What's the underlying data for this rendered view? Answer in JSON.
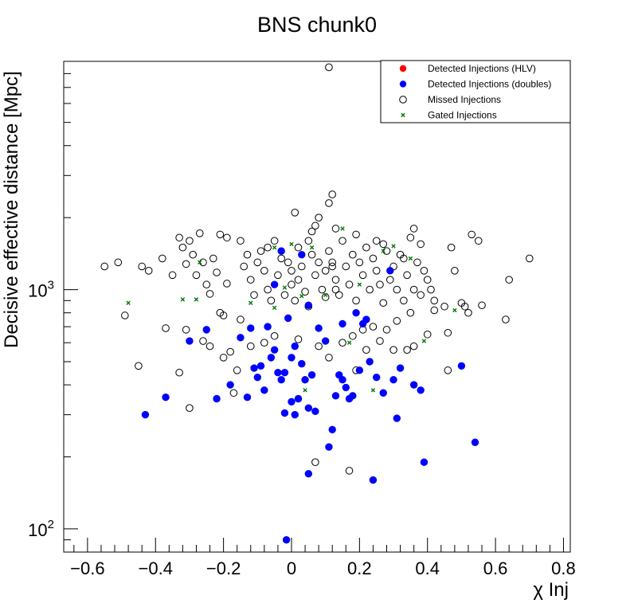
{
  "chart_data": {
    "type": "scatter",
    "title": "BNS chunk0",
    "xlabel": "χ Inj",
    "ylabel": "Decisive effective distance [Mpc]",
    "xlim": [
      -0.67,
      0.82
    ],
    "ylim": [
      80,
      9000
    ],
    "yscale": "log",
    "x_ticks": [
      -0.6,
      -0.4,
      -0.2,
      0,
      0.2,
      0.4,
      0.6,
      0.8
    ],
    "x_tick_labels": [
      "−0.6",
      "−0.4",
      "−0.2",
      "0",
      "0.2",
      "0.4",
      "0.6",
      "0.8"
    ],
    "y_tick_labels": [
      {
        "base": "10",
        "exp": "2",
        "value": 100
      },
      {
        "base": "10",
        "exp": "3",
        "value": 1000
      }
    ],
    "legend_position": "top-right",
    "series": [
      {
        "name": "Detected Injections (HLV)",
        "marker": "filled-circle",
        "color": "#ff0000",
        "points": []
      },
      {
        "name": "Detected Injections (doubles)",
        "marker": "filled-circle",
        "color": "#0000ff",
        "points": [
          [
            -0.43,
            300
          ],
          [
            -0.37,
            355
          ],
          [
            -0.3,
            610
          ],
          [
            -0.22,
            350
          ],
          [
            -0.18,
            400
          ],
          [
            -0.13,
            355
          ],
          [
            -0.15,
            630
          ],
          [
            -0.12,
            690
          ],
          [
            -0.11,
            470
          ],
          [
            -0.1,
            430
          ],
          [
            -0.09,
            480
          ],
          [
            -0.08,
            380
          ],
          [
            -0.07,
            700
          ],
          [
            -0.06,
            520
          ],
          [
            -0.05,
            560
          ],
          [
            -0.04,
            450
          ],
          [
            -0.03,
            420
          ],
          [
            -0.02,
            305
          ],
          [
            -0.015,
            90
          ],
          [
            -0.02,
            450
          ],
          [
            -0.01,
            760
          ],
          [
            0.0,
            520
          ],
          [
            0.01,
            580
          ],
          [
            0.0,
            340
          ],
          [
            0.01,
            300
          ],
          [
            0.02,
            350
          ],
          [
            0.03,
            490
          ],
          [
            0.04,
            420
          ],
          [
            0.05,
            320
          ],
          [
            0.05,
            170
          ],
          [
            0.06,
            440
          ],
          [
            0.07,
            310
          ],
          [
            0.08,
            690
          ],
          [
            0.1,
            610
          ],
          [
            0.11,
            220
          ],
          [
            0.12,
            260
          ],
          [
            0.13,
            360
          ],
          [
            0.14,
            440
          ],
          [
            0.15,
            420
          ],
          [
            0.16,
            390
          ],
          [
            0.17,
            350
          ],
          [
            0.18,
            360
          ],
          [
            0.2,
            460
          ],
          [
            0.21,
            720
          ],
          [
            0.22,
            750
          ],
          [
            0.23,
            500
          ],
          [
            0.24,
            160
          ],
          [
            0.25,
            430
          ],
          [
            0.27,
            370
          ],
          [
            0.29,
            1200
          ],
          [
            0.3,
            420
          ],
          [
            0.31,
            290
          ],
          [
            0.32,
            470
          ],
          [
            0.36,
            400
          ],
          [
            0.38,
            380
          ],
          [
            0.39,
            190
          ],
          [
            0.5,
            480
          ],
          [
            0.54,
            230
          ],
          [
            0.03,
            1400
          ],
          [
            -0.03,
            1450
          ],
          [
            -0.05,
            1050
          ],
          [
            0.19,
            800
          ],
          [
            0.15,
            720
          ],
          [
            -0.25,
            680
          ],
          [
            0.05,
            860
          ]
        ]
      },
      {
        "name": "Missed Injections",
        "marker": "open-circle",
        "color": "#000000",
        "points": [
          [
            0.11,
            8500
          ],
          [
            0.12,
            2500
          ],
          [
            0.11,
            2300
          ],
          [
            0.08,
            2000
          ],
          [
            0.07,
            1850
          ],
          [
            -0.55,
            1250
          ],
          [
            -0.51,
            1300
          ],
          [
            -0.44,
            1250
          ],
          [
            -0.49,
            780
          ],
          [
            -0.45,
            480
          ],
          [
            -0.38,
            1350
          ],
          [
            -0.37,
            690
          ],
          [
            -0.33,
            450
          ],
          [
            -0.3,
            320
          ],
          [
            -0.31,
            680
          ],
          [
            -0.33,
            1650
          ],
          [
            -0.32,
            1500
          ],
          [
            -0.31,
            1280
          ],
          [
            -0.29,
            1400
          ],
          [
            -0.28,
            1150
          ],
          [
            -0.27,
            1720
          ],
          [
            -0.26,
            1300
          ],
          [
            -0.25,
            1050
          ],
          [
            -0.24,
            960
          ],
          [
            -0.23,
            1350
          ],
          [
            -0.22,
            1180
          ],
          [
            -0.21,
            800
          ],
          [
            -0.2,
            780
          ],
          [
            -0.19,
            1060
          ],
          [
            -0.18,
            550
          ],
          [
            -0.17,
            370
          ],
          [
            -0.16,
            460
          ],
          [
            -0.15,
            1600
          ],
          [
            -0.14,
            1250
          ],
          [
            -0.13,
            1400
          ],
          [
            -0.12,
            1100
          ],
          [
            -0.11,
            950
          ],
          [
            -0.1,
            1300
          ],
          [
            -0.09,
            1450
          ],
          [
            -0.08,
            1200
          ],
          [
            -0.07,
            1000
          ],
          [
            -0.06,
            900
          ],
          [
            -0.05,
            1600
          ],
          [
            -0.04,
            1150
          ],
          [
            -0.03,
            1350
          ],
          [
            -0.02,
            950
          ],
          [
            -0.01,
            1300
          ],
          [
            0.0,
            1200
          ],
          [
            0.0,
            1050
          ],
          [
            0.01,
            900
          ],
          [
            0.02,
            1500
          ],
          [
            0.02,
            1100
          ],
          [
            0.03,
            1250
          ],
          [
            0.04,
            980
          ],
          [
            0.05,
            1600
          ],
          [
            0.06,
            1400
          ],
          [
            0.07,
            1150
          ],
          [
            0.08,
            1300
          ],
          [
            0.09,
            1000
          ],
          [
            0.1,
            1200
          ],
          [
            0.11,
            1450
          ],
          [
            0.12,
            1300
          ],
          [
            0.13,
            1100
          ],
          [
            0.14,
            950
          ],
          [
            0.15,
            1600
          ],
          [
            0.16,
            1250
          ],
          [
            0.17,
            1050
          ],
          [
            0.18,
            1400
          ],
          [
            0.19,
            900
          ],
          [
            0.2,
            1300
          ],
          [
            0.21,
            1150
          ],
          [
            0.22,
            1500
          ],
          [
            0.23,
            1000
          ],
          [
            0.24,
            1350
          ],
          [
            0.25,
            1200
          ],
          [
            0.26,
            1050
          ],
          [
            0.27,
            880
          ],
          [
            0.28,
            1450
          ],
          [
            0.29,
            1100
          ],
          [
            0.3,
            1250
          ],
          [
            0.31,
            1000
          ],
          [
            0.32,
            1400
          ],
          [
            0.33,
            900
          ],
          [
            0.34,
            1150
          ],
          [
            0.35,
            1650
          ],
          [
            0.36,
            1000
          ],
          [
            0.37,
            1300
          ],
          [
            0.38,
            950
          ],
          [
            0.39,
            1200
          ],
          [
            0.4,
            1100
          ],
          [
            0.41,
            1000
          ],
          [
            0.42,
            820
          ],
          [
            0.45,
            850
          ],
          [
            0.46,
            660
          ],
          [
            0.48,
            1200
          ],
          [
            0.5,
            880
          ],
          [
            0.52,
            800
          ],
          [
            0.53,
            1700
          ],
          [
            0.55,
            1600
          ],
          [
            0.56,
            860
          ],
          [
            0.63,
            750
          ],
          [
            0.64,
            1100
          ],
          [
            0.7,
            1350
          ],
          [
            0.36,
            1800
          ],
          [
            0.38,
            1550
          ],
          [
            0.33,
            1350
          ],
          [
            0.12,
            1250
          ],
          [
            0.13,
            1000
          ],
          [
            0.1,
            930
          ],
          [
            0.05,
            850
          ],
          [
            -0.15,
            750
          ],
          [
            -0.12,
            580
          ],
          [
            0.07,
            190
          ],
          [
            0.17,
            175
          ],
          [
            0.19,
            460
          ],
          [
            0.22,
            560
          ],
          [
            0.26,
            610
          ],
          [
            0.3,
            560
          ],
          [
            0.34,
            560
          ],
          [
            0.36,
            580
          ],
          [
            0.4,
            650
          ],
          [
            0.46,
            460
          ],
          [
            0.51,
            850
          ],
          [
            -0.35,
            1150
          ],
          [
            -0.42,
            1200
          ],
          [
            -0.26,
            610
          ],
          [
            -0.24,
            580
          ],
          [
            -0.2,
            520
          ],
          [
            -0.08,
            600
          ],
          [
            -0.05,
            640
          ],
          [
            0.02,
            620
          ],
          [
            0.08,
            580
          ],
          [
            0.11,
            520
          ],
          [
            0.15,
            600
          ],
          [
            0.18,
            640
          ],
          [
            0.21,
            680
          ],
          [
            0.24,
            700
          ],
          [
            0.28,
            680
          ],
          [
            0.31,
            740
          ],
          [
            0.35,
            800
          ],
          [
            0.42,
            900
          ],
          [
            0.47,
            1500
          ],
          [
            -0.19,
            1650
          ],
          [
            -0.21,
            1700
          ],
          [
            -0.3,
            1600
          ],
          [
            -0.07,
            1500
          ],
          [
            0.06,
            1750
          ],
          [
            0.13,
            1800
          ],
          [
            0.19,
            1700
          ],
          [
            0.25,
            1600
          ],
          [
            0.27,
            1550
          ],
          [
            0.01,
            2100
          ]
        ]
      },
      {
        "name": "Gated Injections",
        "marker": "x",
        "color": "#007700",
        "points": [
          [
            -0.48,
            880
          ],
          [
            -0.32,
            910
          ],
          [
            -0.28,
            910
          ],
          [
            -0.27,
            1300
          ],
          [
            -0.05,
            1500
          ],
          [
            0.0,
            1550
          ],
          [
            0.06,
            1500
          ],
          [
            0.15,
            1800
          ],
          [
            0.27,
            1450
          ],
          [
            0.3,
            1520
          ],
          [
            0.35,
            1350
          ],
          [
            0.48,
            820
          ],
          [
            0.39,
            610
          ],
          [
            0.17,
            600
          ],
          [
            0.24,
            380
          ],
          [
            0.04,
            380
          ],
          [
            -0.12,
            880
          ],
          [
            -0.02,
            1020
          ],
          [
            0.03,
            940
          ],
          [
            0.1,
            950
          ],
          [
            0.2,
            1050
          ],
          [
            -0.05,
            840
          ]
        ]
      }
    ]
  }
}
